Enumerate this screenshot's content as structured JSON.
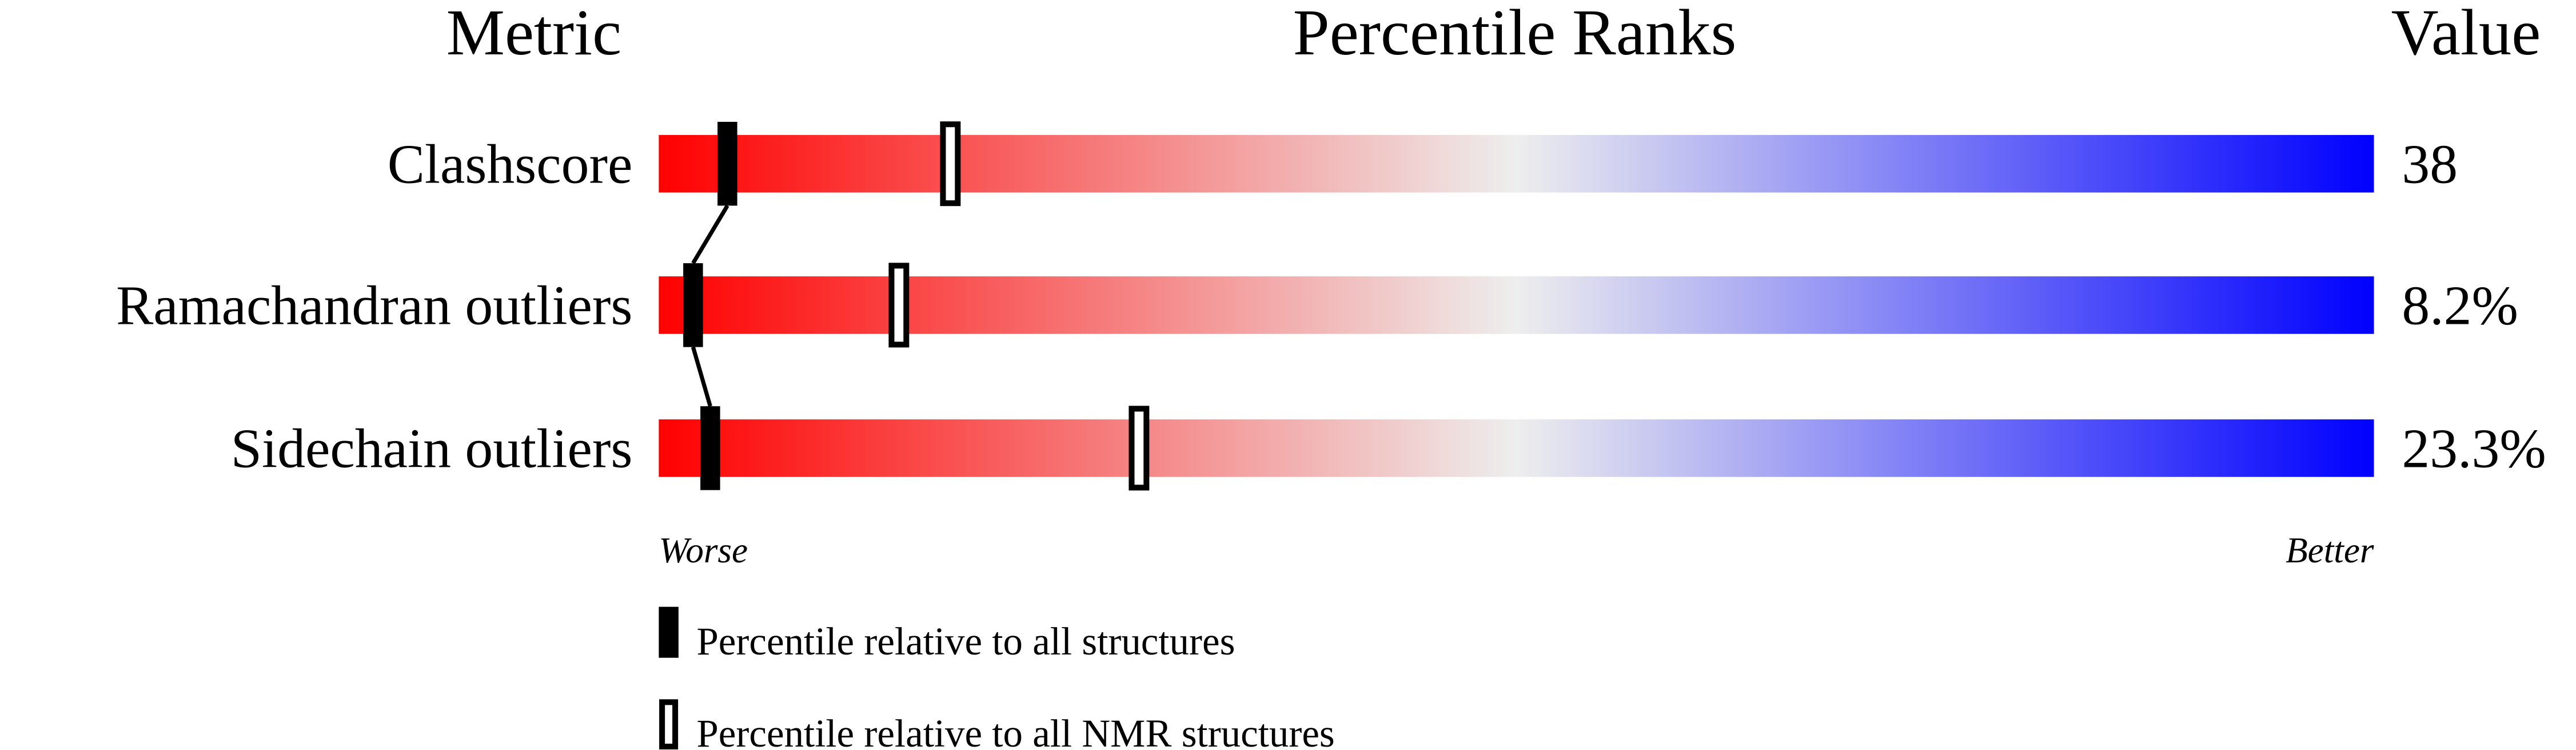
{
  "chart_data": {
    "type": "percentile-slider",
    "headers": {
      "metric": "Metric",
      "ranks": "Percentile Ranks",
      "value": "Value"
    },
    "axis_range": [
      0,
      100
    ],
    "scale_labels": {
      "left": "Worse",
      "right": "Better"
    },
    "colors": {
      "worse": "#ff0000",
      "middle": "#eeeeee",
      "better": "#0000ff"
    },
    "metrics": [
      {
        "name": "Clashscore",
        "value": "38",
        "percentile_all": 4,
        "percentile_nmr": 17
      },
      {
        "name": "Ramachandran outliers",
        "value": "8.2%",
        "percentile_all": 2,
        "percentile_nmr": 14
      },
      {
        "name": "Sidechain outliers",
        "value": "23.3%",
        "percentile_all": 3,
        "percentile_nmr": 28
      }
    ],
    "legend": [
      {
        "label": "Percentile relative to all structures",
        "marker": "filled"
      },
      {
        "label": "Percentile relative to all NMR structures",
        "marker": "hollow"
      }
    ]
  }
}
